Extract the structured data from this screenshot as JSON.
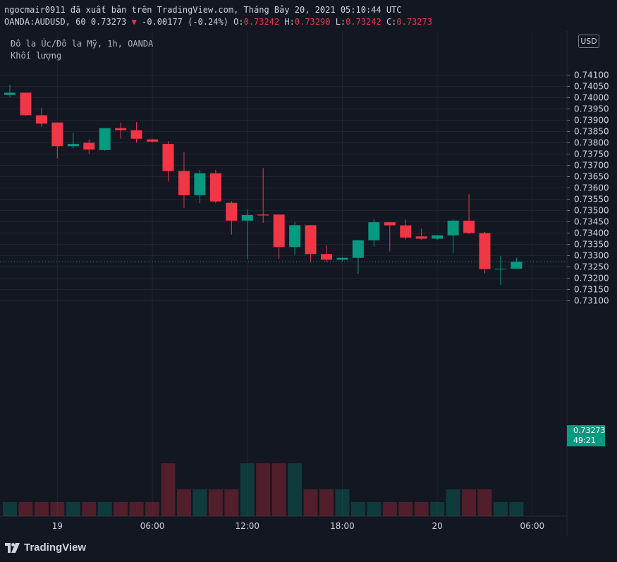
{
  "header": {
    "line1": "ngocmair0911 đã xuất bản trên TradingView.com, Tháng Bảy 20, 2021 05:10:44 UTC",
    "symbol_text": "OANDA:AUDUSD, 60 0.73273",
    "change_arrow": "▼",
    "change_text": "-0.00177 (-0.24%)",
    "o_label": "O:",
    "o_value": "0.73242",
    "h_label": "H:",
    "h_value": "0.73290",
    "l_label": "L:",
    "l_value": "0.73242",
    "c_label": "C:",
    "c_value": "0.73273"
  },
  "legend": {
    "title": "Đô la Úc/Đô la Mỹ, 1h, OANDA",
    "volume_label": "Khối lượng"
  },
  "currency_badge": "USD",
  "last_price": {
    "price": "0.73273",
    "countdown": "49:21"
  },
  "footer": {
    "logo_text": "TradingView"
  },
  "colors": {
    "up": "#089981",
    "down": "#f23645",
    "background": "#131722",
    "grid": "#1f2330"
  },
  "chart_data": {
    "type": "candlestick",
    "symbol": "OANDA:AUDUSD",
    "timeframe": "1h",
    "ylim": [
      0.73075,
      0.74115
    ],
    "y_ticks": [
      "0.74100",
      "0.74050",
      "0.74000",
      "0.73950",
      "0.73900",
      "0.73850",
      "0.73800",
      "0.73750",
      "0.73700",
      "0.73650",
      "0.73600",
      "0.73550",
      "0.73500",
      "0.73450",
      "0.73400",
      "0.73350",
      "0.73300",
      "0.73250",
      "0.73200",
      "0.73150",
      "0.73100"
    ],
    "x_ticks": [
      {
        "label": "19",
        "index": 3
      },
      {
        "label": "06:00",
        "index": 9
      },
      {
        "label": "12:00",
        "index": 15
      },
      {
        "label": "18:00",
        "index": 21
      },
      {
        "label": "20",
        "index": 27
      },
      {
        "label": "06:00",
        "index": 33
      }
    ],
    "candles": [
      {
        "o": 0.74012,
        "h": 0.74058,
        "l": 0.74002,
        "c": 0.74022,
        "v": "low"
      },
      {
        "o": 0.74022,
        "h": 0.74022,
        "l": 0.7392,
        "c": 0.73922,
        "v": "low"
      },
      {
        "o": 0.73922,
        "h": 0.73955,
        "l": 0.7387,
        "c": 0.73885,
        "v": "low"
      },
      {
        "o": 0.7389,
        "h": 0.7389,
        "l": 0.7373,
        "c": 0.73785,
        "v": "low"
      },
      {
        "o": 0.73785,
        "h": 0.73845,
        "l": 0.73775,
        "c": 0.73795,
        "v": "low"
      },
      {
        "o": 0.738,
        "h": 0.73815,
        "l": 0.7375,
        "c": 0.7377,
        "v": "low"
      },
      {
        "o": 0.73768,
        "h": 0.73865,
        "l": 0.73765,
        "c": 0.73865,
        "v": "low"
      },
      {
        "o": 0.73865,
        "h": 0.7389,
        "l": 0.73818,
        "c": 0.73856,
        "v": "low"
      },
      {
        "o": 0.73856,
        "h": 0.73892,
        "l": 0.73801,
        "c": 0.73818,
        "v": "low"
      },
      {
        "o": 0.73815,
        "h": 0.73818,
        "l": 0.738,
        "c": 0.73805,
        "v": "low"
      },
      {
        "o": 0.73795,
        "h": 0.73808,
        "l": 0.73628,
        "c": 0.73675,
        "v": "high"
      },
      {
        "o": 0.73675,
        "h": 0.7376,
        "l": 0.73512,
        "c": 0.73568,
        "v": "mid"
      },
      {
        "o": 0.73568,
        "h": 0.7368,
        "l": 0.73532,
        "c": 0.73665,
        "v": "mid"
      },
      {
        "o": 0.73665,
        "h": 0.7368,
        "l": 0.73532,
        "c": 0.7354,
        "v": "mid"
      },
      {
        "o": 0.73534,
        "h": 0.73542,
        "l": 0.73393,
        "c": 0.73455,
        "v": "mid"
      },
      {
        "o": 0.73455,
        "h": 0.73505,
        "l": 0.73285,
        "c": 0.7348,
        "v": "high"
      },
      {
        "o": 0.73482,
        "h": 0.73688,
        "l": 0.73445,
        "c": 0.73478,
        "v": "high"
      },
      {
        "o": 0.73482,
        "h": 0.73482,
        "l": 0.73285,
        "c": 0.73338,
        "v": "high"
      },
      {
        "o": 0.73338,
        "h": 0.7345,
        "l": 0.73305,
        "c": 0.73435,
        "v": "high"
      },
      {
        "o": 0.73435,
        "h": 0.73435,
        "l": 0.7327,
        "c": 0.73307,
        "v": "mid"
      },
      {
        "o": 0.73307,
        "h": 0.73345,
        "l": 0.73273,
        "c": 0.73282,
        "v": "mid"
      },
      {
        "o": 0.73282,
        "h": 0.73292,
        "l": 0.73275,
        "c": 0.7329,
        "v": "mid"
      },
      {
        "o": 0.7329,
        "h": 0.7337,
        "l": 0.7322,
        "c": 0.73368,
        "v": "low"
      },
      {
        "o": 0.73368,
        "h": 0.7346,
        "l": 0.7334,
        "c": 0.73448,
        "v": "low"
      },
      {
        "o": 0.73448,
        "h": 0.73448,
        "l": 0.73318,
        "c": 0.73434,
        "v": "low"
      },
      {
        "o": 0.73434,
        "h": 0.7346,
        "l": 0.73372,
        "c": 0.7338,
        "v": "low"
      },
      {
        "o": 0.73385,
        "h": 0.7342,
        "l": 0.7337,
        "c": 0.73375,
        "v": "low"
      },
      {
        "o": 0.73375,
        "h": 0.7339,
        "l": 0.7337,
        "c": 0.7339,
        "v": "low"
      },
      {
        "o": 0.7339,
        "h": 0.7346,
        "l": 0.7331,
        "c": 0.73455,
        "v": "mid"
      },
      {
        "o": 0.73455,
        "h": 0.73572,
        "l": 0.73395,
        "c": 0.734,
        "v": "mid"
      },
      {
        "o": 0.734,
        "h": 0.73405,
        "l": 0.73222,
        "c": 0.7324,
        "v": "mid"
      },
      {
        "o": 0.73242,
        "h": 0.73298,
        "l": 0.7317,
        "c": 0.73242,
        "v": "low"
      },
      {
        "o": 0.73242,
        "h": 0.7329,
        "l": 0.73242,
        "c": 0.73273,
        "v": "low"
      }
    ]
  }
}
